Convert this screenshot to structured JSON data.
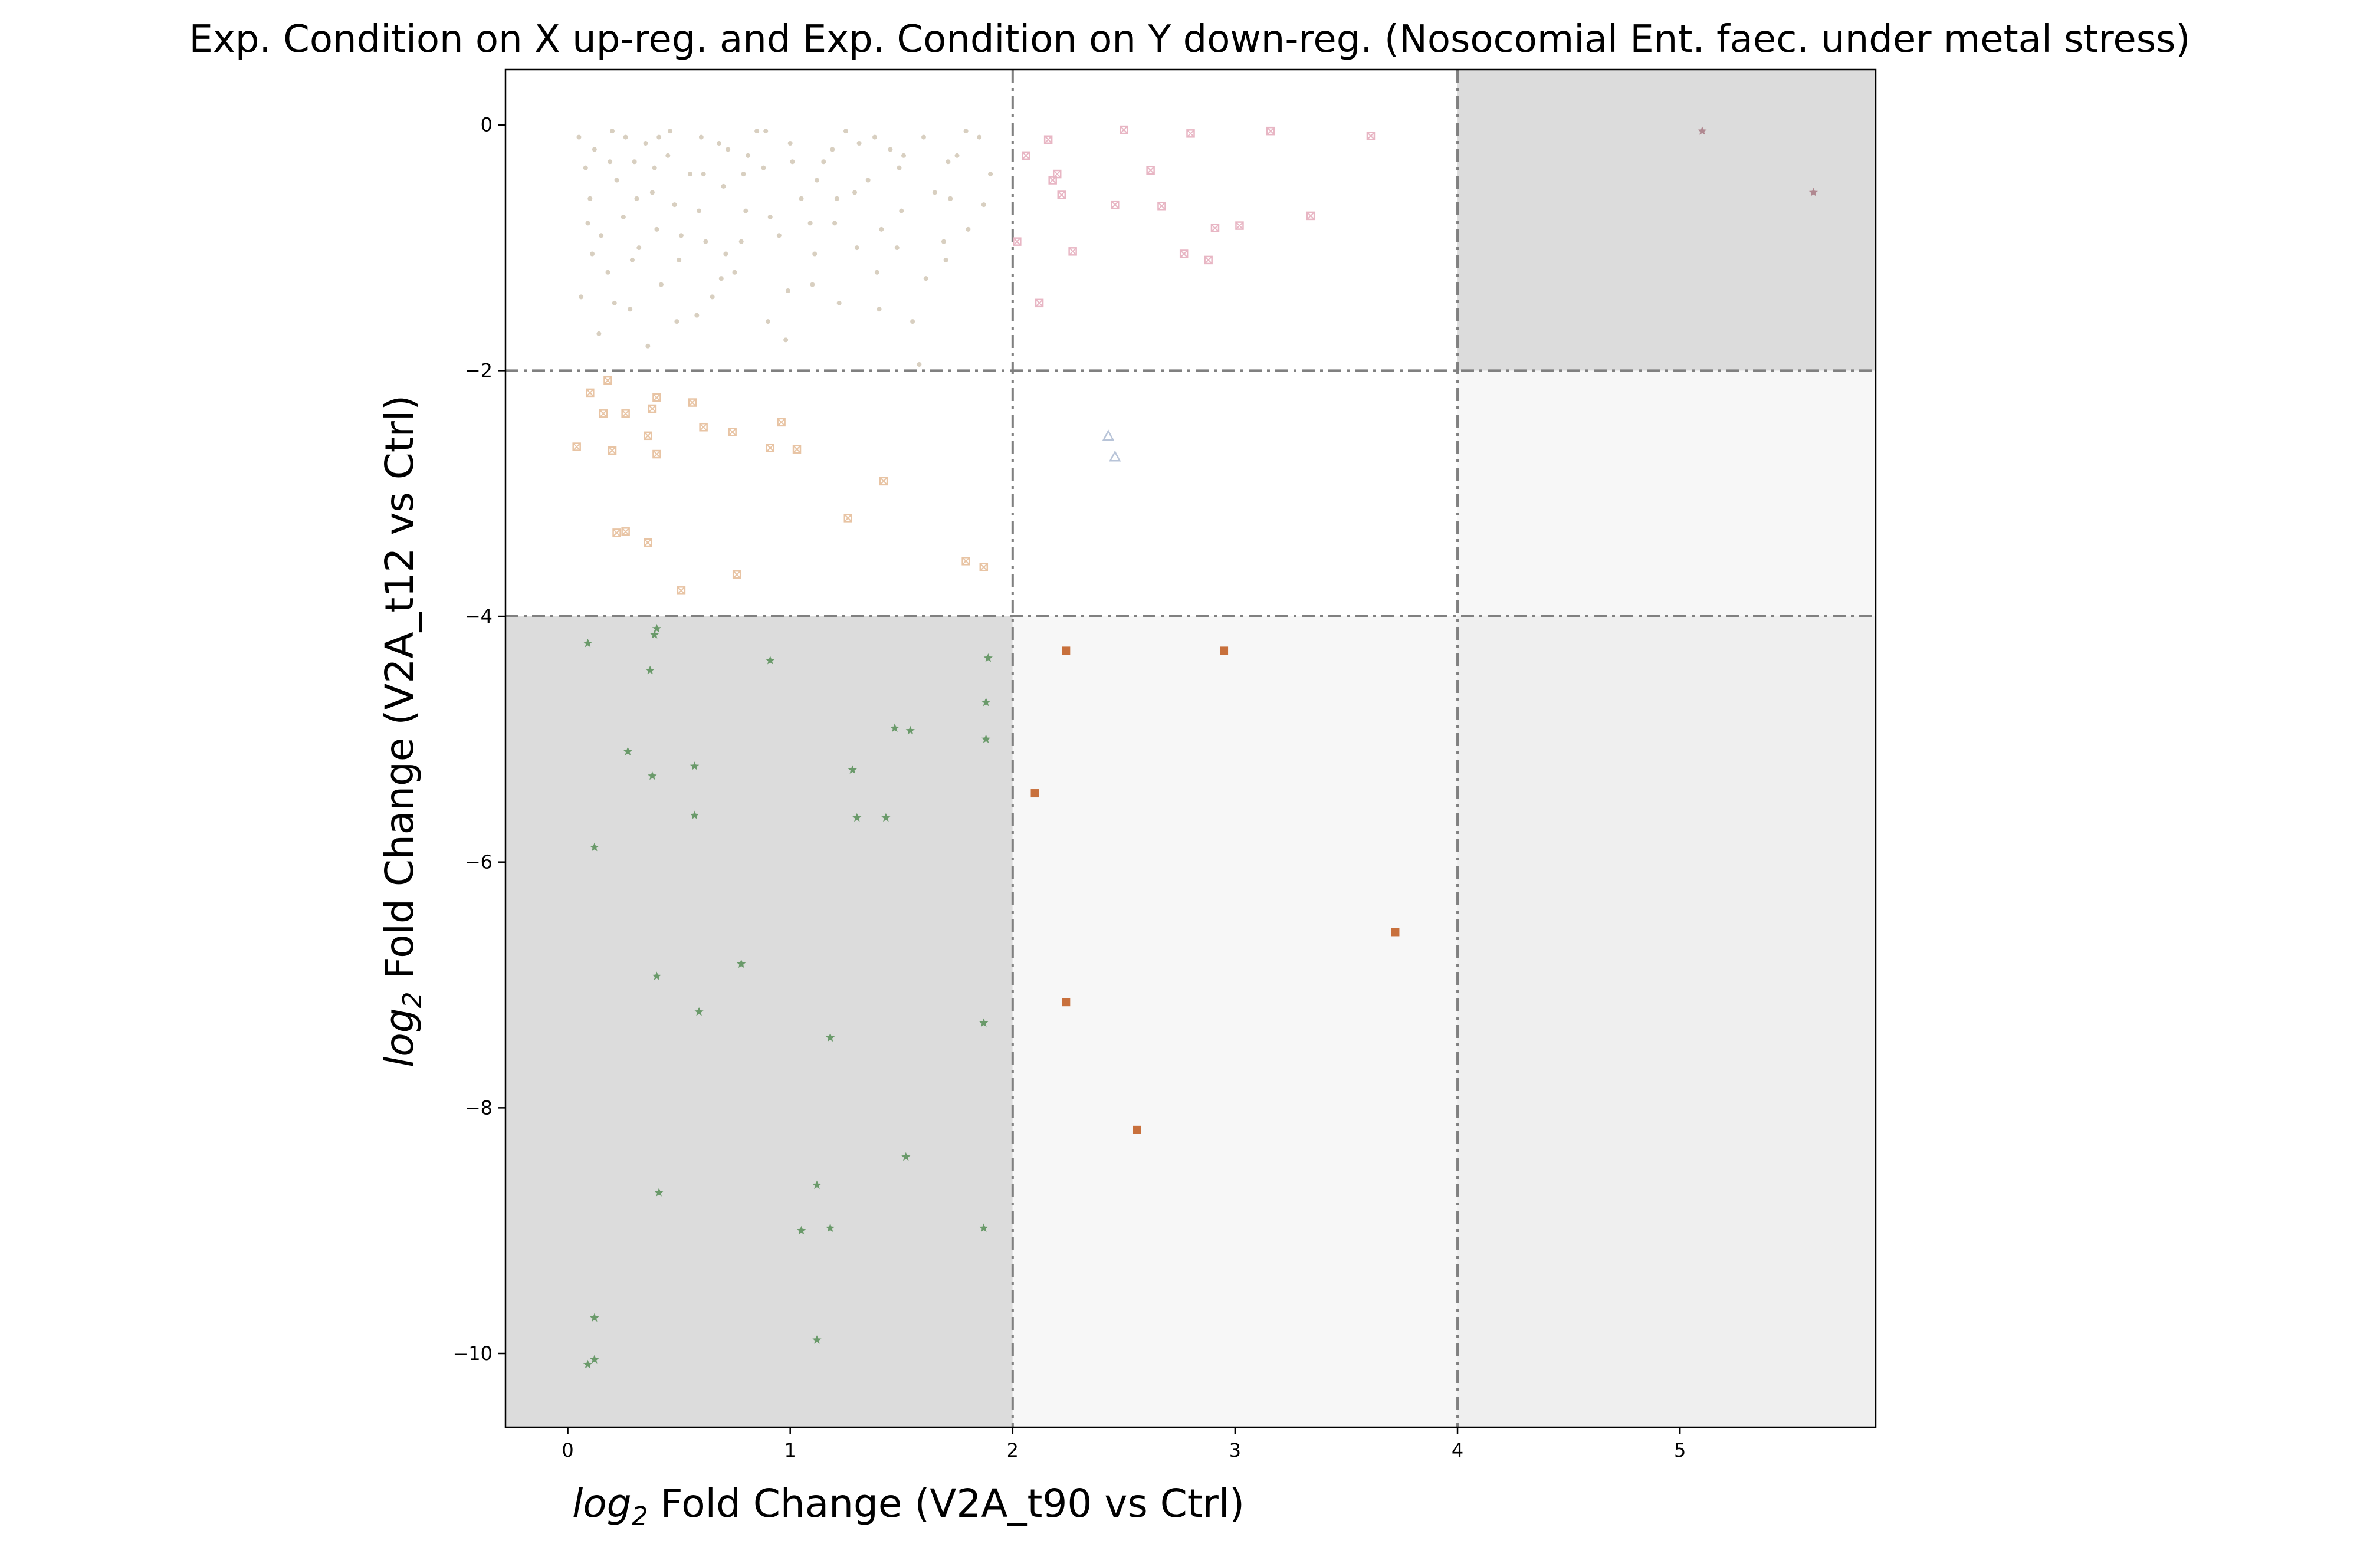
{
  "chart_data": {
    "type": "scatter",
    "title": "Exp. Condition on X up-reg. and Exp. Condition on Y down-reg. (Nosocomial Ent. faec. under metal stress)",
    "xlabel_math": "log",
    "xlabel_sub": "2",
    "xlabel_rest": " Fold Change (V2A_t90 vs Ctrl)",
    "ylabel_math": "log",
    "ylabel_sub": "2",
    "ylabel_rest": " Fold Change (V2A_t12 vs Ctrl)",
    "xlim": [
      -0.28,
      5.88
    ],
    "ylim": [
      -10.6,
      0.45
    ],
    "x_ticks": [
      0,
      1,
      2,
      3,
      4,
      5
    ],
    "y_ticks": [
      0,
      -2,
      -4,
      -6,
      -8,
      -10
    ],
    "grid": false,
    "thresholds_x": [
      2,
      4
    ],
    "thresholds_y": [
      -2,
      -4
    ],
    "regions": [
      {
        "x": [
          -0.28,
          2
        ],
        "y": [
          -10.6,
          -4
        ],
        "color": "#dcdcdc"
      },
      {
        "x": [
          2,
          4
        ],
        "y": [
          -10.6,
          -4
        ],
        "color": "#f7f7f7"
      },
      {
        "x": [
          4,
          5.88
        ],
        "y": [
          -10.6,
          -4
        ],
        "color": "#efefef"
      },
      {
        "x": [
          4,
          5.88
        ],
        "y": [
          -4,
          -2
        ],
        "color": "#f7f7f7"
      },
      {
        "x": [
          4,
          5.88
        ],
        "y": [
          -2,
          0.45
        ],
        "color": "#dcdcdc"
      }
    ],
    "series": [
      {
        "marker": "dot",
        "color": "#d8cfc0",
        "points": [
          [
            0.05,
            -0.1
          ],
          [
            0.08,
            -0.35
          ],
          [
            0.1,
            -0.6
          ],
          [
            0.12,
            -0.2
          ],
          [
            0.15,
            -0.9
          ],
          [
            0.18,
            -1.2
          ],
          [
            0.2,
            -0.05
          ],
          [
            0.22,
            -0.45
          ],
          [
            0.25,
            -0.75
          ],
          [
            0.28,
            -1.5
          ],
          [
            0.3,
            -0.3
          ],
          [
            0.32,
            -1.0
          ],
          [
            0.35,
            -0.15
          ],
          [
            0.38,
            -0.55
          ],
          [
            0.4,
            -0.85
          ],
          [
            0.42,
            -1.3
          ],
          [
            0.45,
            -0.25
          ],
          [
            0.48,
            -0.65
          ],
          [
            0.5,
            -1.1
          ],
          [
            0.55,
            -0.4
          ],
          [
            0.6,
            -0.1
          ],
          [
            0.62,
            -0.95
          ],
          [
            0.65,
            -1.4
          ],
          [
            0.7,
            -0.5
          ],
          [
            0.72,
            -0.2
          ],
          [
            0.75,
            -1.2
          ],
          [
            0.8,
            -0.7
          ],
          [
            0.85,
            -0.05
          ],
          [
            0.88,
            -0.35
          ],
          [
            0.9,
            -1.6
          ],
          [
            0.95,
            -0.9
          ],
          [
            1.0,
            -0.15
          ],
          [
            1.05,
            -0.6
          ],
          [
            1.1,
            -1.3
          ],
          [
            1.15,
            -0.3
          ],
          [
            1.2,
            -0.8
          ],
          [
            1.25,
            -0.05
          ],
          [
            1.3,
            -1.0
          ],
          [
            1.35,
            -0.45
          ],
          [
            1.4,
            -1.5
          ],
          [
            1.45,
            -0.2
          ],
          [
            1.5,
            -0.7
          ],
          [
            1.55,
            -1.6
          ],
          [
            1.6,
            -0.1
          ],
          [
            1.65,
            -0.55
          ],
          [
            1.7,
            -1.1
          ],
          [
            1.75,
            -0.25
          ],
          [
            1.8,
            -0.85
          ],
          [
            1.85,
            -0.1
          ],
          [
            1.9,
            -0.4
          ],
          [
            0.06,
            -1.4
          ],
          [
            0.14,
            -1.7
          ],
          [
            0.26,
            -0.1
          ],
          [
            0.36,
            -1.8
          ],
          [
            0.46,
            -0.05
          ],
          [
            0.58,
            -1.55
          ],
          [
            0.68,
            -0.15
          ],
          [
            0.78,
            -0.95
          ],
          [
            0.98,
            -1.75
          ],
          [
            1.12,
            -0.45
          ],
          [
            1.22,
            -1.45
          ],
          [
            1.38,
            -0.1
          ],
          [
            1.48,
            -1.0
          ],
          [
            1.58,
            -1.95
          ],
          [
            1.72,
            -0.6
          ],
          [
            0.09,
            -0.8
          ],
          [
            0.19,
            -0.3
          ],
          [
            0.29,
            -1.1
          ],
          [
            0.39,
            -0.35
          ],
          [
            0.49,
            -1.6
          ],
          [
            0.59,
            -0.7
          ],
          [
            0.69,
            -1.25
          ],
          [
            0.79,
            -0.4
          ],
          [
            0.89,
            -0.05
          ],
          [
            0.99,
            -1.35
          ],
          [
            1.09,
            -0.8
          ],
          [
            1.19,
            -0.2
          ],
          [
            1.29,
            -0.55
          ],
          [
            1.39,
            -1.2
          ],
          [
            1.49,
            -0.35
          ],
          [
            1.69,
            -0.95
          ],
          [
            1.79,
            -0.05
          ],
          [
            0.11,
            -1.05
          ],
          [
            0.21,
            -1.45
          ],
          [
            0.31,
            -0.6
          ],
          [
            0.41,
            -0.1
          ],
          [
            0.51,
            -0.9
          ],
          [
            0.61,
            -0.4
          ],
          [
            0.71,
            -1.05
          ],
          [
            0.81,
            -0.25
          ],
          [
            0.91,
            -0.75
          ],
          [
            1.01,
            -0.3
          ],
          [
            1.11,
            -1.05
          ],
          [
            1.21,
            -0.6
          ],
          [
            1.31,
            -0.15
          ],
          [
            1.41,
            -0.85
          ],
          [
            1.51,
            -0.25
          ],
          [
            1.61,
            -1.25
          ],
          [
            1.71,
            -0.3
          ],
          [
            1.87,
            -0.65
          ]
        ]
      },
      {
        "marker": "xsquare",
        "color": "#e8b6c4",
        "points": [
          [
            2.02,
            -0.95
          ],
          [
            2.06,
            -0.25
          ],
          [
            2.12,
            -1.45
          ],
          [
            2.16,
            -0.12
          ],
          [
            2.18,
            -0.45
          ],
          [
            2.2,
            -0.4
          ],
          [
            2.22,
            -0.57
          ],
          [
            2.27,
            -1.03
          ],
          [
            2.5,
            -0.04
          ],
          [
            2.46,
            -0.65
          ],
          [
            2.62,
            -0.37
          ],
          [
            2.67,
            -0.66
          ],
          [
            2.77,
            -1.05
          ],
          [
            2.8,
            -0.07
          ],
          [
            2.88,
            -1.1
          ],
          [
            2.91,
            -0.84
          ],
          [
            3.02,
            -0.82
          ],
          [
            3.16,
            -0.05
          ],
          [
            3.34,
            -0.74
          ],
          [
            3.61,
            -0.09
          ]
        ]
      },
      {
        "marker": "xsquare",
        "color": "#e8c4a4",
        "points": [
          [
            0.04,
            -2.62
          ],
          [
            0.1,
            -2.18
          ],
          [
            0.16,
            -2.35
          ],
          [
            0.18,
            -2.08
          ],
          [
            0.2,
            -2.65
          ],
          [
            0.22,
            -3.32
          ],
          [
            0.26,
            -2.35
          ],
          [
            0.26,
            -3.31
          ],
          [
            0.36,
            -2.53
          ],
          [
            0.36,
            -3.4
          ],
          [
            0.38,
            -2.31
          ],
          [
            0.4,
            -2.22
          ],
          [
            0.4,
            -2.68
          ],
          [
            0.51,
            -3.79
          ],
          [
            0.56,
            -2.26
          ],
          [
            0.61,
            -2.46
          ],
          [
            0.74,
            -2.5
          ],
          [
            0.76,
            -3.66
          ],
          [
            0.91,
            -2.63
          ],
          [
            0.96,
            -2.42
          ],
          [
            1.03,
            -2.64
          ],
          [
            1.26,
            -3.2
          ],
          [
            1.42,
            -2.9
          ],
          [
            1.79,
            -3.55
          ],
          [
            1.87,
            -3.6
          ]
        ]
      },
      {
        "marker": "triangle",
        "color": "#b8c4d8",
        "points": [
          [
            2.43,
            -2.53
          ],
          [
            2.46,
            -2.7
          ]
        ]
      },
      {
        "marker": "star",
        "color": "#6a9a6a",
        "points": [
          [
            0.09,
            -4.22
          ],
          [
            0.37,
            -4.44
          ],
          [
            0.39,
            -4.15
          ],
          [
            0.4,
            -4.1
          ],
          [
            0.91,
            -4.36
          ],
          [
            1.89,
            -4.34
          ],
          [
            1.88,
            -4.7
          ],
          [
            1.88,
            -5.0
          ],
          [
            1.47,
            -4.91
          ],
          [
            1.54,
            -4.93
          ],
          [
            0.27,
            -5.1
          ],
          [
            0.38,
            -5.3
          ],
          [
            0.57,
            -5.22
          ],
          [
            1.28,
            -5.25
          ],
          [
            0.57,
            -5.62
          ],
          [
            1.3,
            -5.64
          ],
          [
            1.43,
            -5.64
          ],
          [
            0.12,
            -5.88
          ],
          [
            0.4,
            -6.93
          ],
          [
            0.78,
            -6.83
          ],
          [
            0.59,
            -7.22
          ],
          [
            1.18,
            -7.43
          ],
          [
            1.87,
            -7.31
          ],
          [
            0.41,
            -8.69
          ],
          [
            1.12,
            -8.63
          ],
          [
            1.52,
            -8.4
          ],
          [
            1.05,
            -9.0
          ],
          [
            1.18,
            -8.98
          ],
          [
            1.87,
            -8.98
          ],
          [
            0.12,
            -9.71
          ],
          [
            1.12,
            -9.89
          ],
          [
            0.12,
            -10.05
          ],
          [
            0.09,
            -10.09
          ]
        ]
      },
      {
        "marker": "square",
        "color": "#c8703c",
        "points": [
          [
            2.24,
            -4.28
          ],
          [
            2.95,
            -4.28
          ],
          [
            2.1,
            -5.44
          ],
          [
            3.72,
            -6.57
          ],
          [
            2.24,
            -7.14
          ],
          [
            2.56,
            -8.18
          ]
        ]
      },
      {
        "marker": "star",
        "color": "#b08890",
        "points": [
          [
            5.1,
            -0.05
          ],
          [
            5.6,
            -0.55
          ]
        ]
      }
    ]
  }
}
